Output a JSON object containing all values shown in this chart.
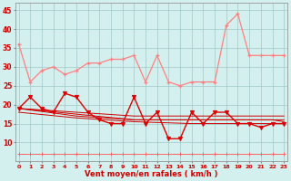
{
  "x": [
    0,
    1,
    2,
    3,
    4,
    5,
    6,
    7,
    8,
    9,
    10,
    11,
    12,
    13,
    14,
    15,
    16,
    17,
    18,
    19,
    20,
    21,
    22,
    23
  ],
  "series_gust": [
    36,
    26,
    29,
    30,
    28,
    29,
    31,
    31,
    32,
    32,
    33,
    26,
    33,
    26,
    25,
    26,
    26,
    26,
    41,
    44,
    33,
    33,
    33,
    33
  ],
  "series_mean": [
    19,
    22,
    19,
    18,
    23,
    22,
    18,
    16,
    15,
    15,
    22,
    15,
    18,
    11,
    11,
    18,
    15,
    18,
    18,
    15,
    15,
    14,
    15,
    15
  ],
  "series_trend1": [
    19,
    18.8,
    18.6,
    18.4,
    18.2,
    18.0,
    17.8,
    17.6,
    17.4,
    17.2,
    17.0,
    17.0,
    17.0,
    17.0,
    17.0,
    17.0,
    17.0,
    17.0,
    17.0,
    17.0,
    17.0,
    17.0,
    17.0,
    17.0
  ],
  "series_trend2": [
    19,
    18.6,
    18.2,
    17.8,
    17.4,
    17.0,
    16.8,
    16.6,
    16.4,
    16.2,
    16.0,
    16.0,
    16.0,
    16.0,
    16.0,
    16.0,
    16.0,
    16.0,
    16.0,
    16.0,
    16.0,
    16.0,
    16.0,
    16.0
  ],
  "series_trend3": [
    19,
    18.7,
    18.4,
    18.1,
    17.8,
    17.5,
    17.2,
    16.9,
    16.6,
    16.3,
    16.0,
    16.0,
    16.0,
    16.0,
    16.0,
    16.0,
    16.0,
    16.0,
    16.0,
    16.0,
    16.0,
    16.0,
    16.0,
    15.5
  ],
  "series_trend4": [
    18,
    17.7,
    17.4,
    17.1,
    16.8,
    16.5,
    16.3,
    16.1,
    15.9,
    15.7,
    15.5,
    15.4,
    15.3,
    15.2,
    15.1,
    15.0,
    15.0,
    15.0,
    15.0,
    15.0,
    15.0,
    15.0,
    15.0,
    15.0
  ],
  "series_low": [
    7,
    7,
    7,
    7,
    7,
    7,
    7,
    7,
    7,
    7,
    7,
    7,
    7,
    7,
    7,
    7,
    7,
    7,
    7,
    7,
    7,
    7,
    7,
    7
  ],
  "color_gust": "#ff8080",
  "color_mean": "#dd0000",
  "color_trend": "#cc0000",
  "color_low": "#ff6666",
  "bg_color": "#d4f0ee",
  "grid_color": "#a0c8c8",
  "xlabel": "Vent moyen/en rafales ( km/h )",
  "ylabel_ticks": [
    10,
    15,
    20,
    25,
    30,
    35,
    40,
    45
  ],
  "ylim": [
    5,
    47
  ],
  "xlim": [
    -0.3,
    23.3
  ]
}
